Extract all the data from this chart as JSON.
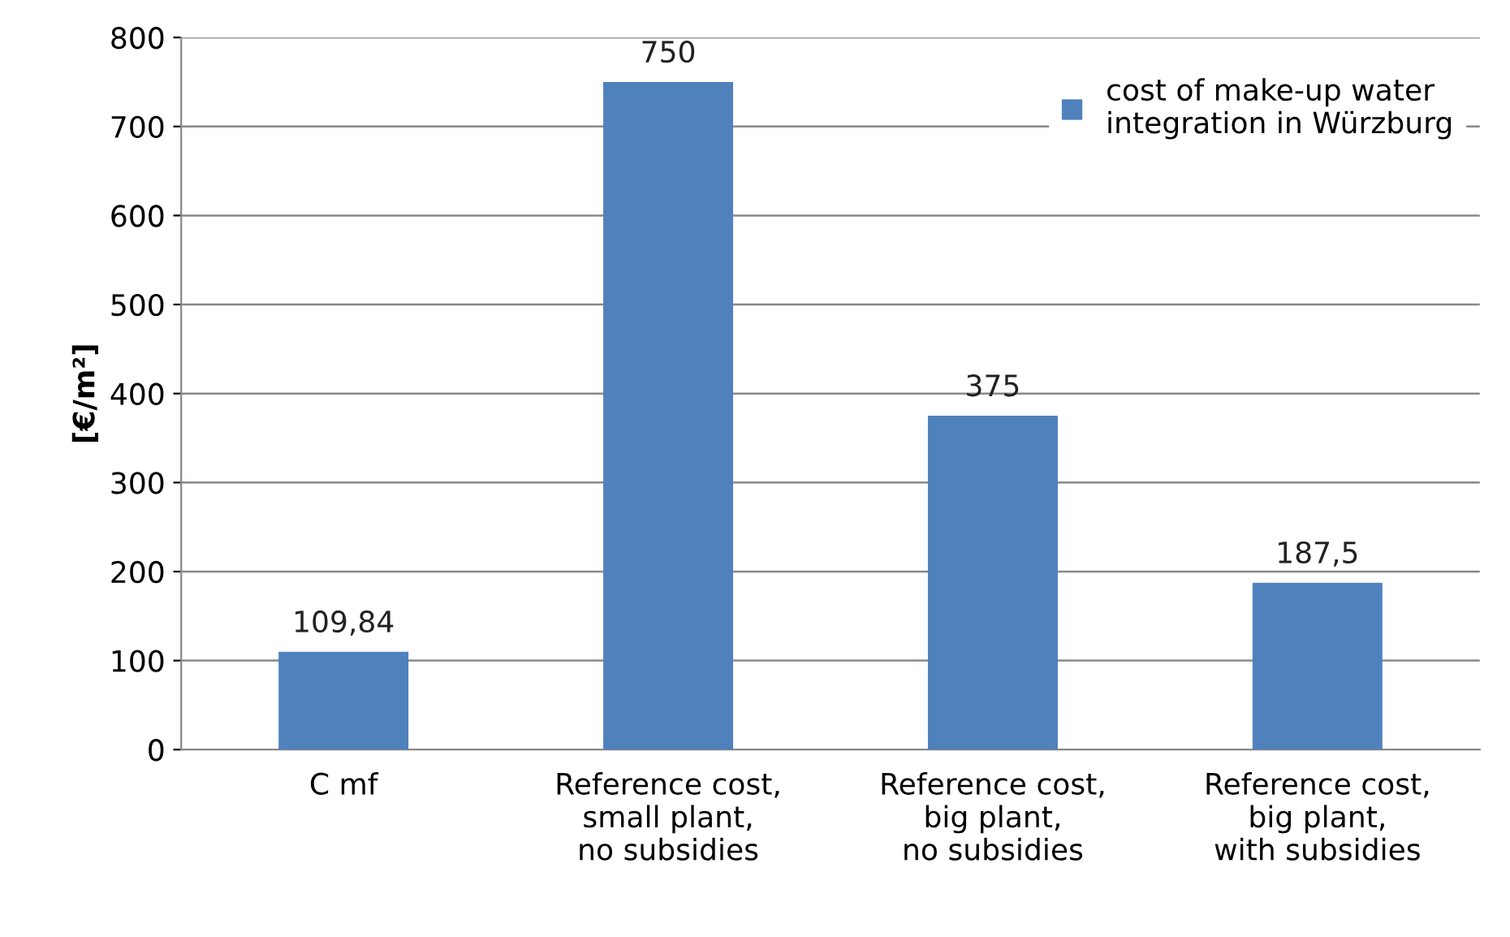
{
  "chart_data": {
    "type": "bar",
    "ylabel": "[€/m²]",
    "categories": [
      "C mf",
      "Reference cost,\nsmall plant,\nno subsidies",
      "Reference cost,\nbig plant,\nno subsidies",
      "Reference cost,\nbig plant,\nwith subsidies"
    ],
    "series": [
      {
        "name": "cost of make-up water\nintegration in Würzburg",
        "color": "#4f81bd",
        "values": [
          109.84,
          750,
          375,
          187.5
        ],
        "value_labels": [
          "109,84",
          "750",
          "375",
          "187,5"
        ]
      }
    ],
    "ylim": [
      0,
      800
    ],
    "yticks": [
      0,
      100,
      200,
      300,
      400,
      500,
      600,
      700,
      800
    ],
    "grid": "y",
    "legend": "top right"
  }
}
